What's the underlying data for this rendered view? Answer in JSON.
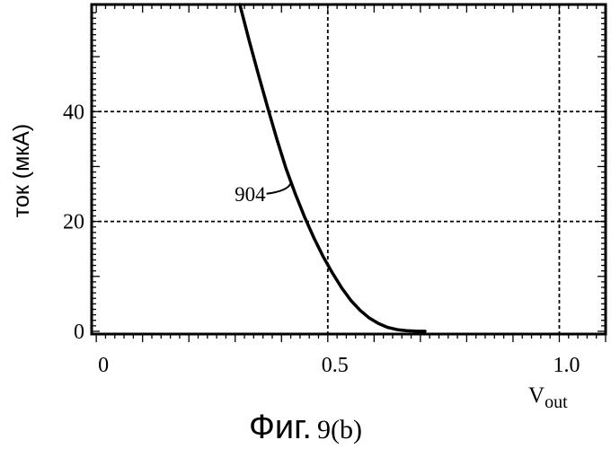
{
  "chart_data": {
    "type": "line",
    "title": "",
    "xlabel": "V",
    "xlabel_sub": "out",
    "ylabel": "ток (мкА)",
    "xlim": [
      -0.01,
      1.1
    ],
    "ylim": [
      -0.5,
      59.5
    ],
    "x_ticks": [
      {
        "value": 0,
        "label": "0"
      },
      {
        "value": 0.5,
        "label": "0.5"
      },
      {
        "value": 1.0,
        "label": "1.0"
      }
    ],
    "y_ticks": [
      {
        "value": 0,
        "label": "0"
      },
      {
        "value": 20,
        "label": "20"
      },
      {
        "value": 40,
        "label": "40"
      }
    ],
    "grid_x": [
      0.5,
      1.0
    ],
    "grid_y": [
      20,
      40
    ],
    "grid": true,
    "series": [
      {
        "label": "904",
        "x": [
          0.31,
          0.33,
          0.35,
          0.37,
          0.39,
          0.41,
          0.43,
          0.45,
          0.47,
          0.49,
          0.51,
          0.53,
          0.55,
          0.57,
          0.59,
          0.61,
          0.63,
          0.65,
          0.67,
          0.69,
          0.71
        ],
        "y": [
          59.5,
          53.0,
          46.8,
          40.8,
          35.0,
          29.6,
          25.0,
          20.8,
          17.0,
          13.6,
          10.6,
          7.9,
          5.6,
          3.8,
          2.4,
          1.4,
          0.7,
          0.3,
          0.1,
          0.02,
          0.0
        ]
      }
    ],
    "annotation": {
      "text": "904",
      "x": 0.42,
      "y": 27.0
    }
  },
  "caption": {
    "prefix": "Фиг.",
    "number": "9(b)"
  }
}
